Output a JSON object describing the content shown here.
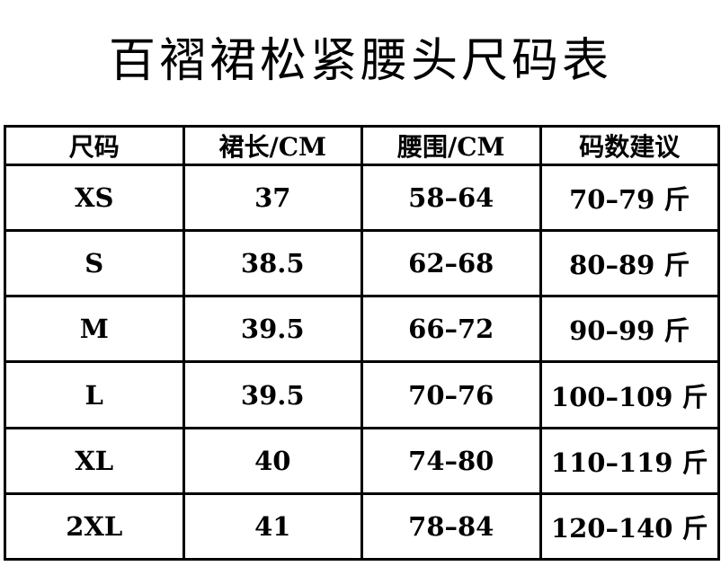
{
  "title": "百褶裙松紧腰头尺码表",
  "table": {
    "headers": [
      "尺码",
      "裙长/CM",
      "腰围/CM",
      "码数建议"
    ],
    "rows": [
      [
        "XS",
        "37",
        "58–64",
        "70–79 斤"
      ],
      [
        "S",
        "38.5",
        "62–68",
        "80–89 斤"
      ],
      [
        "M",
        "39.5",
        "66–72",
        "90–99 斤"
      ],
      [
        "L",
        "39.5",
        "70–76",
        "100–109 斤"
      ],
      [
        "XL",
        "40",
        "74–80",
        "110–119 斤"
      ],
      [
        "2XL",
        "41",
        "78–84",
        "120–140 斤"
      ]
    ]
  }
}
